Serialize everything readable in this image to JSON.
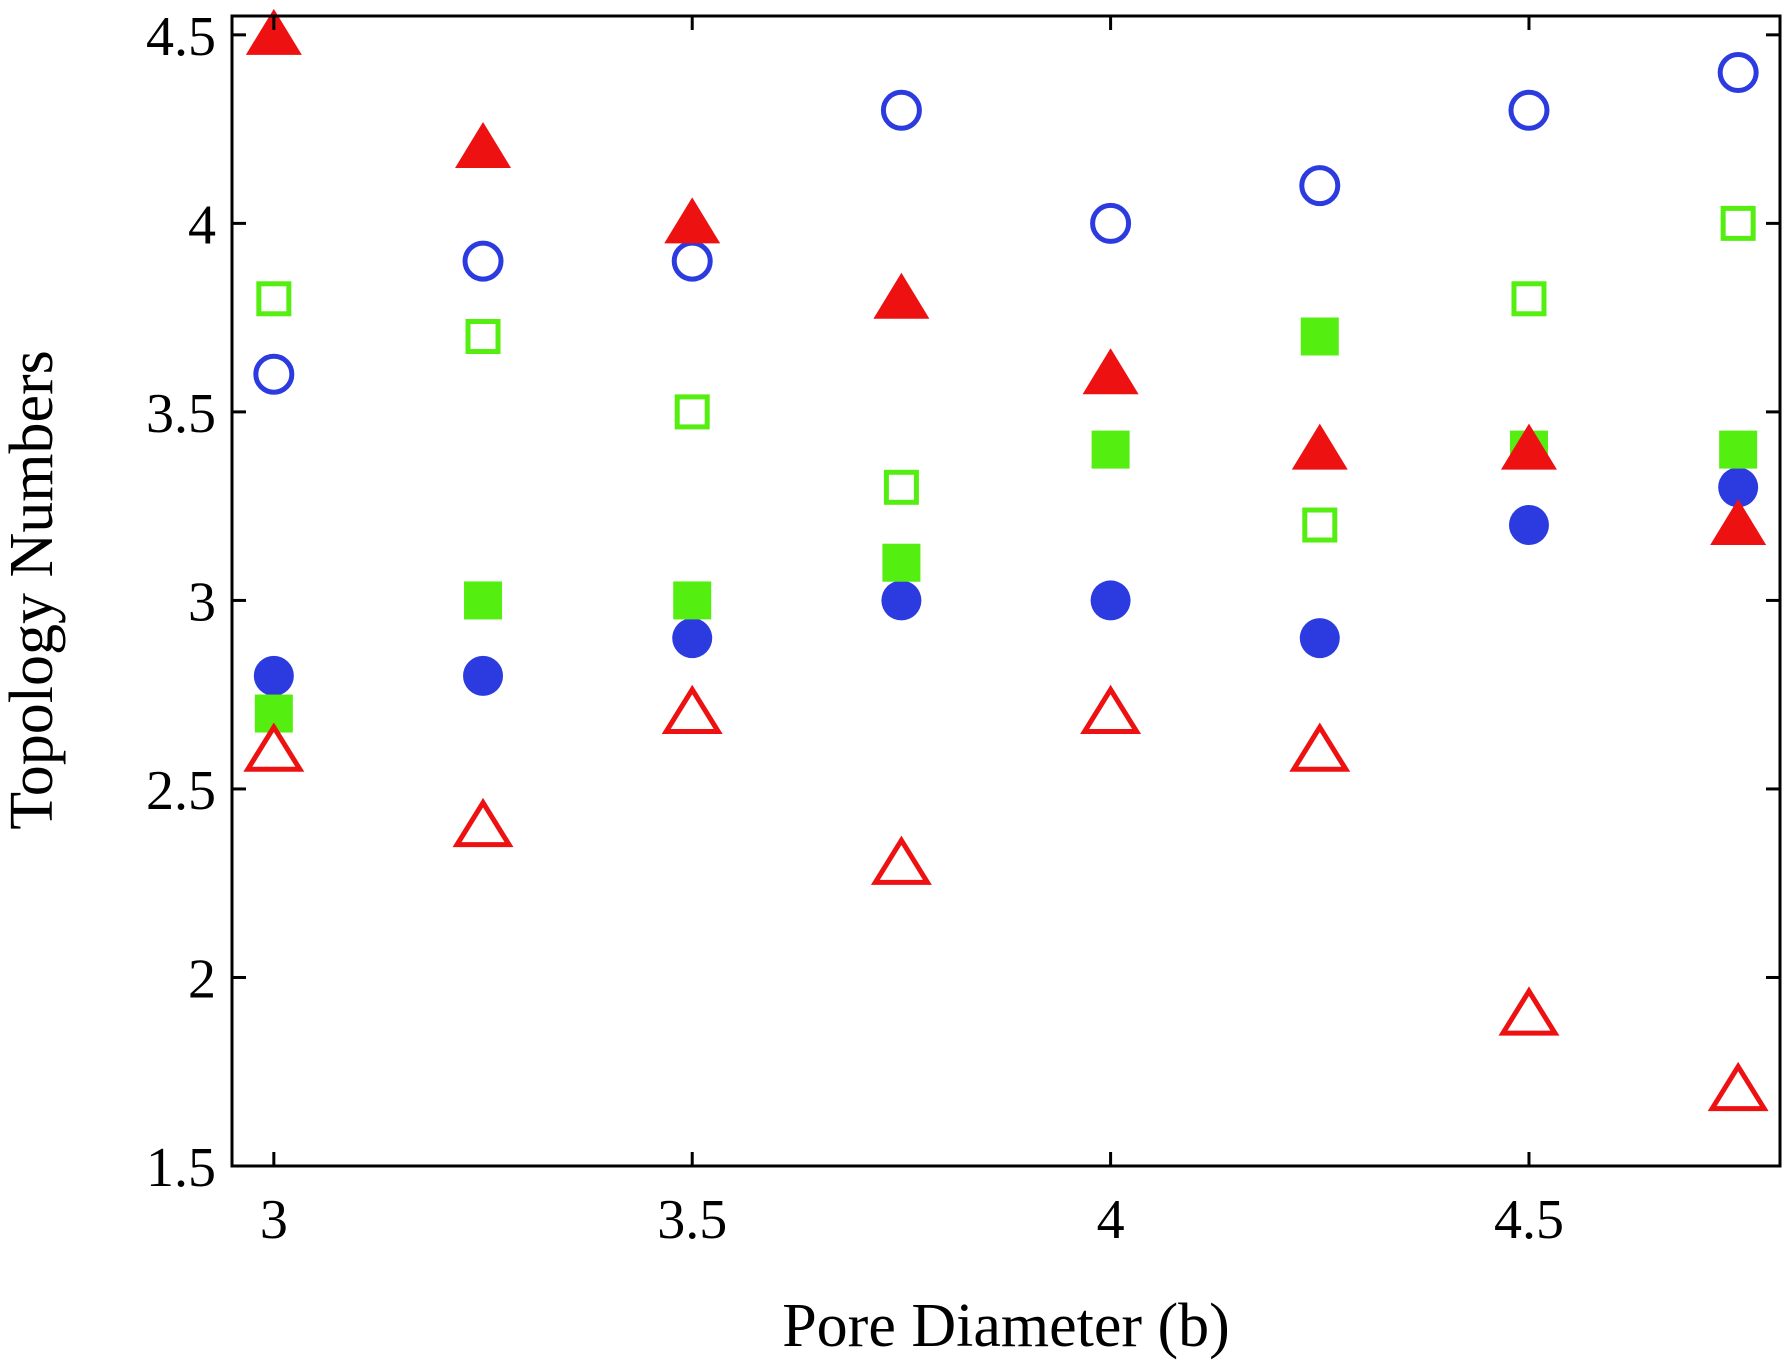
{
  "chart_data": {
    "type": "scatter",
    "title": "",
    "xlabel": "Pore Diameter (b)",
    "ylabel": "Topology Numbers",
    "xlim": [
      2.95,
      4.8
    ],
    "ylim": [
      1.5,
      4.55
    ],
    "xticks": [
      3,
      3.5,
      4,
      4.5
    ],
    "xtick_labels": [
      "3",
      "3.5",
      "4",
      "4.5"
    ],
    "yticks": [
      1.5,
      2,
      2.5,
      3,
      3.5,
      4,
      4.5
    ],
    "ytick_labels": [
      "1.5",
      "2",
      "2.5",
      "3",
      "3.5",
      "4",
      "4.5"
    ],
    "grid": false,
    "legend": "none",
    "x": [
      3,
      3.25,
      3.5,
      3.75,
      4,
      4.25,
      4.5,
      4.75
    ],
    "series": [
      {
        "marker": "circle-open",
        "color": "#2b3be0",
        "values": [
          3.6,
          3.9,
          3.9,
          4.3,
          4.0,
          4.1,
          4.3,
          4.4
        ]
      },
      {
        "marker": "circle-filled",
        "color": "#2b3be0",
        "values": [
          2.8,
          2.8,
          2.9,
          3.0,
          3.0,
          2.9,
          3.2,
          3.3
        ]
      },
      {
        "marker": "square-open",
        "color": "#55ee11",
        "values": [
          3.8,
          3.7,
          3.5,
          3.3,
          null,
          3.2,
          3.8,
          4.0
        ]
      },
      {
        "marker": "square-filled",
        "color": "#55ee11",
        "values": [
          2.7,
          3.0,
          3.0,
          3.1,
          3.4,
          3.7,
          3.4,
          3.4
        ]
      },
      {
        "marker": "triangle-filled",
        "color": "#ee1111",
        "values": [
          4.5,
          4.2,
          4.0,
          3.8,
          3.6,
          3.4,
          3.4,
          3.2
        ]
      },
      {
        "marker": "triangle-open",
        "color": "#ee1111",
        "values": [
          2.6,
          2.4,
          2.7,
          2.3,
          2.7,
          2.6,
          1.9,
          1.7
        ]
      }
    ]
  }
}
